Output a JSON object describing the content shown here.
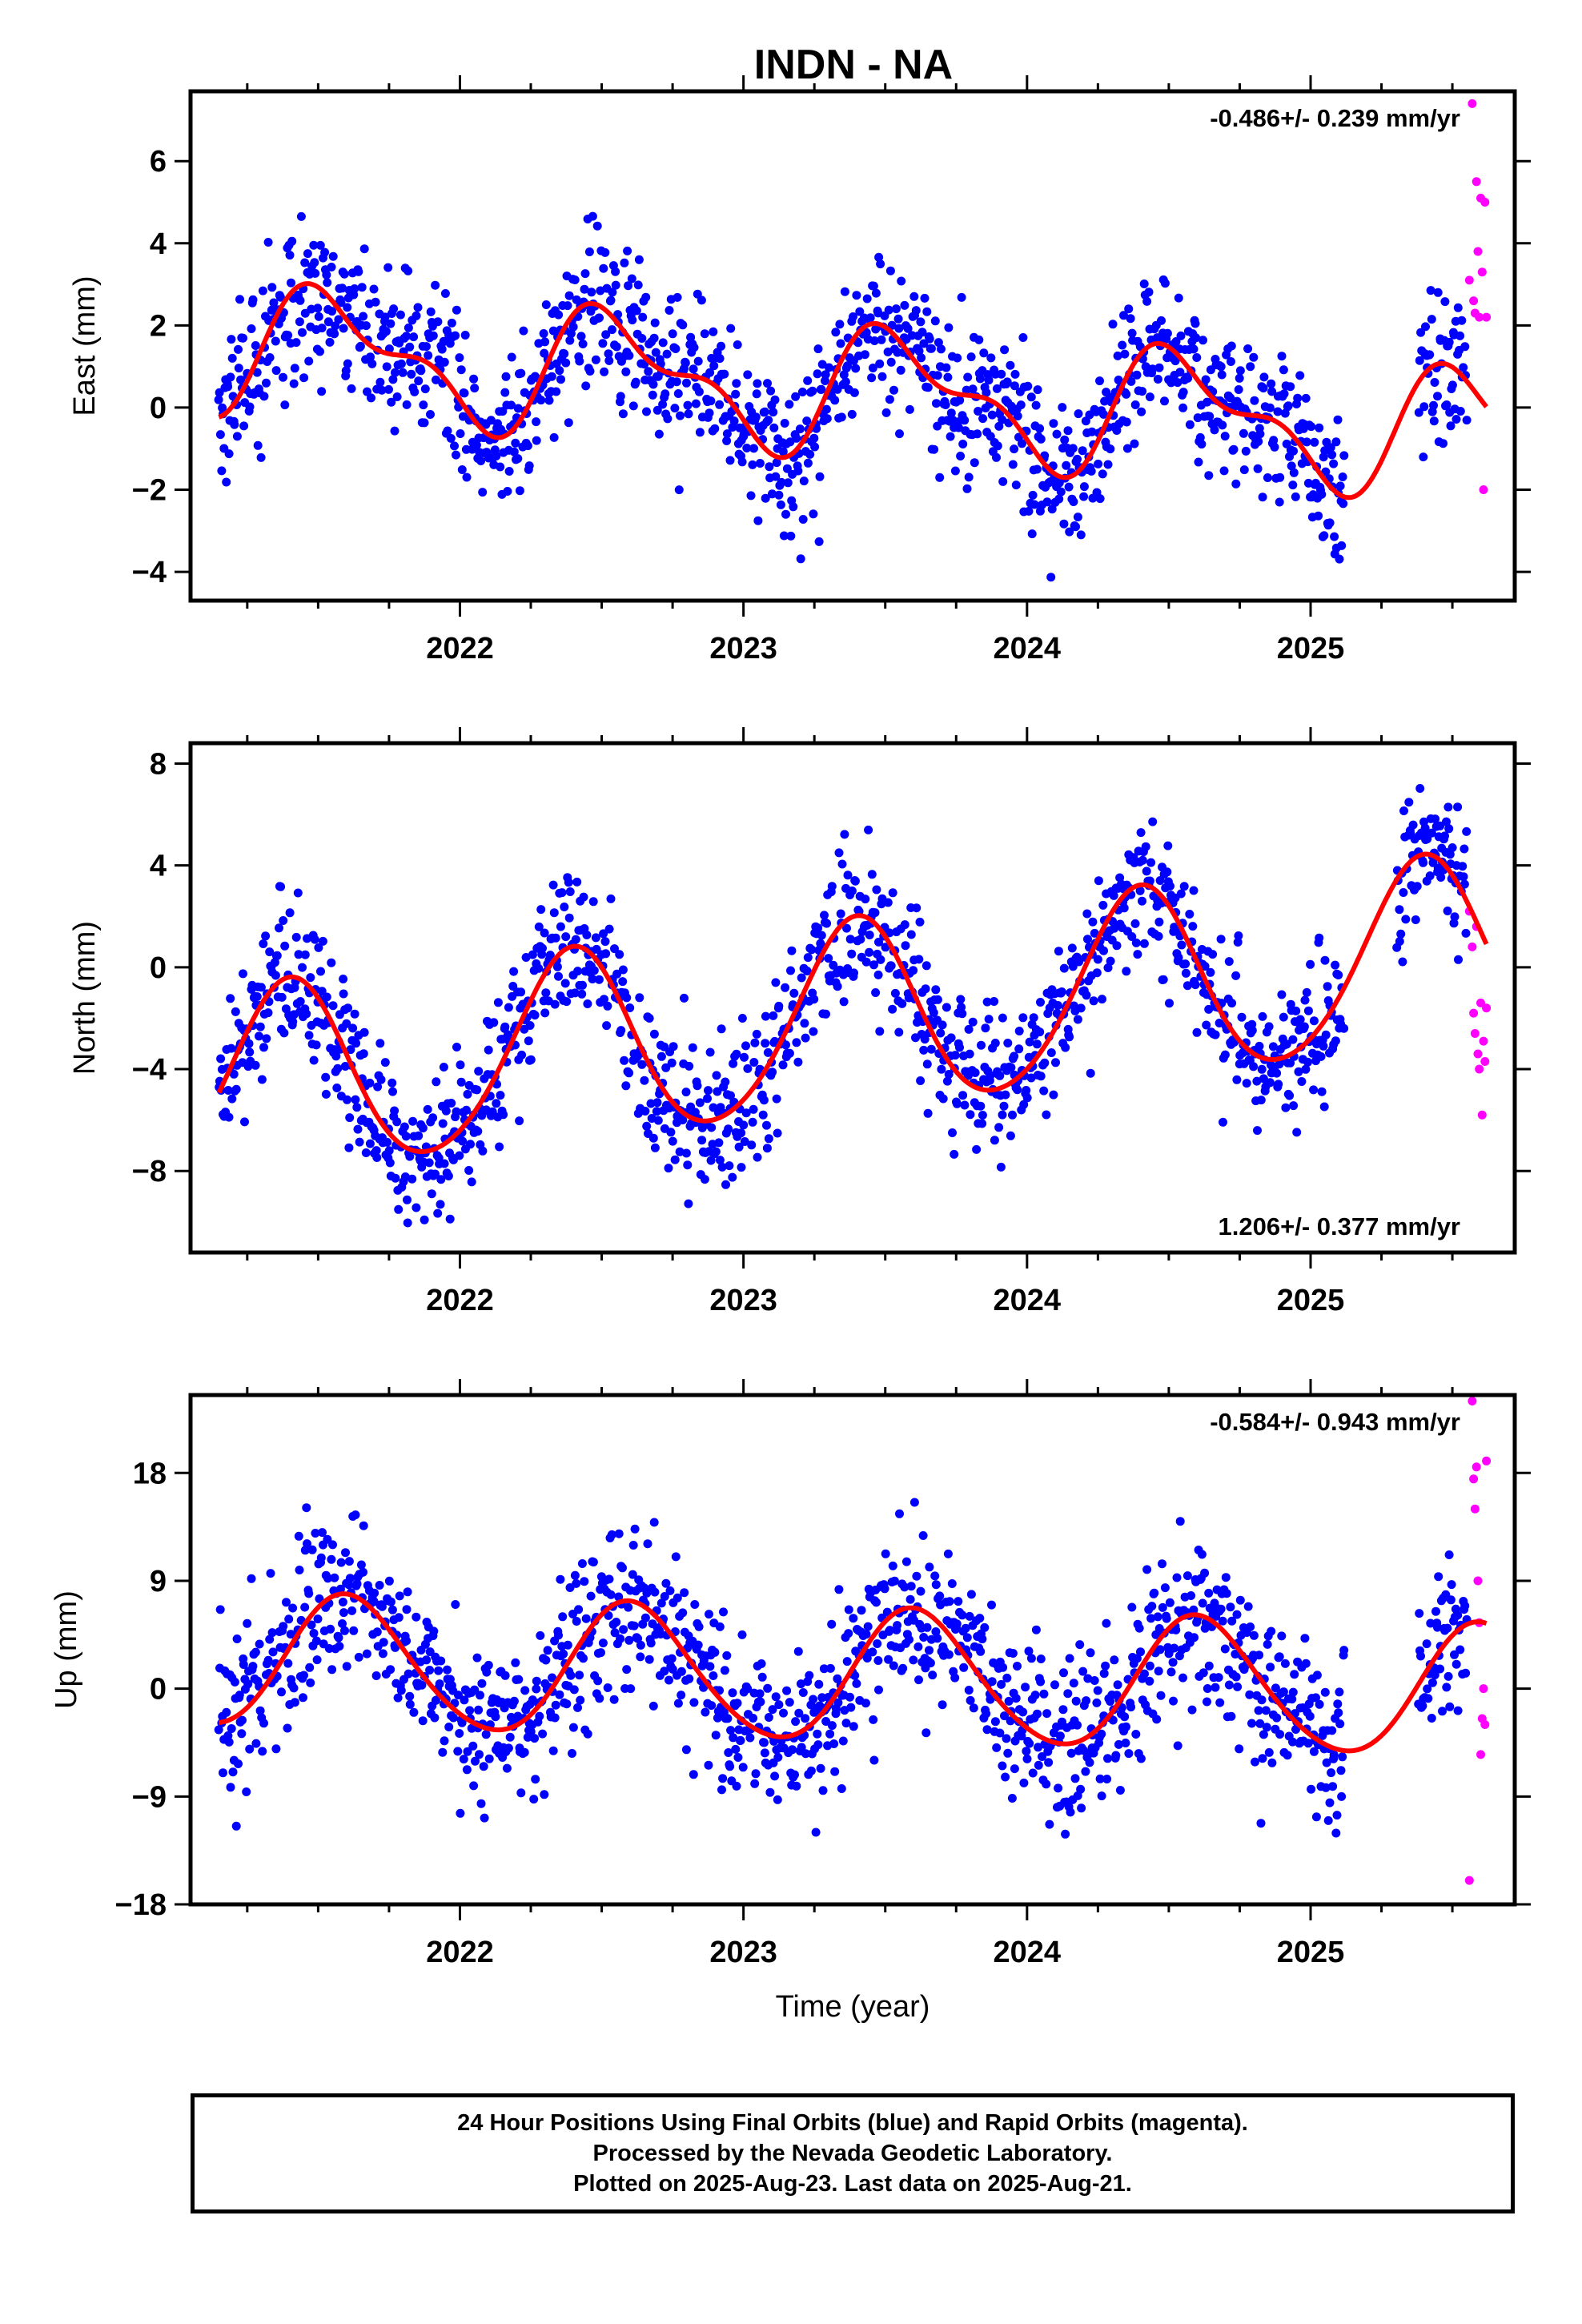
{
  "title": "INDN - NA",
  "colors": {
    "final_orbits": "#0000ff",
    "rapid_orbits": "#ff00ff",
    "model_fit": "#ff0000",
    "frame": "#000000"
  },
  "footer": {
    "line1": "24 Hour Positions Using Final Orbits (blue) and Rapid Orbits (magenta).",
    "line2": "Processed by the Nevada Geodetic Laboratory.",
    "line3": "Plotted on 2025-Aug-23. Last data on 2025-Aug-21."
  },
  "chart_data": [
    {
      "type": "scatter",
      "title": "INDN - NA",
      "ylabel": "East (mm)",
      "xlabel": "",
      "rate_label": "-0.486+/- 0.239 mm/yr",
      "rate_label_position": "top-right",
      "xlim": [
        2021.05,
        2025.72
      ],
      "ylim": [
        -4.7,
        7.7
      ],
      "x_ticks": [
        2022,
        2023,
        2024,
        2025
      ],
      "y_ticks": [
        6,
        4,
        2,
        0,
        -2,
        -4
      ],
      "model": {
        "offset": 0.6,
        "rate": -0.486,
        "annual_cos": -1.25,
        "annual_sin": -0.45,
        "semiannual_cos": 0.35,
        "semiannual_sin": -0.55
      },
      "series": [
        {
          "name": "Final Orbits (blue)",
          "color": "#0000ff",
          "x_start": 2021.15,
          "x_end": 2025.55,
          "n": 1500,
          "scatter": 0.95,
          "gaps": [
            [
              2025.12,
              2025.38
            ]
          ]
        },
        {
          "name": "Rapid Orbits (magenta)",
          "color": "#ff00ff",
          "x": [
            2025.56,
            2025.57,
            2025.575,
            2025.58,
            2025.585,
            2025.59,
            2025.595,
            2025.6,
            2025.605,
            2025.61,
            2025.615,
            2025.62
          ],
          "y": [
            3.1,
            7.4,
            2.6,
            2.3,
            5.5,
            3.8,
            2.2,
            5.1,
            3.3,
            -2.0,
            5.0,
            2.2
          ]
        }
      ]
    },
    {
      "type": "scatter",
      "title": "",
      "ylabel": "North (mm)",
      "xlabel": "",
      "rate_label": "1.206+/- 0.377 mm/yr",
      "rate_label_position": "bottom-right",
      "xlim": [
        2021.05,
        2025.72
      ],
      "ylim": [
        -11.2,
        8.8
      ],
      "x_ticks": [
        2022,
        2023,
        2024,
        2025
      ],
      "y_ticks": [
        8,
        4,
        0,
        -4,
        -8
      ],
      "model": {
        "offset": -2.5,
        "rate": 1.206,
        "annual_cos": -2.9,
        "annual_sin": 2.3,
        "semiannual_cos": 0.2,
        "semiannual_sin": -0.3
      },
      "series": [
        {
          "name": "Final Orbits (blue)",
          "color": "#0000ff",
          "x_start": 2021.15,
          "x_end": 2025.55,
          "n": 1500,
          "scatter": 1.4,
          "gaps": [
            [
              2025.12,
              2025.3
            ]
          ]
        },
        {
          "name": "Rapid Orbits (magenta)",
          "color": "#ff00ff",
          "x": [
            2025.56,
            2025.57,
            2025.575,
            2025.58,
            2025.585,
            2025.59,
            2025.595,
            2025.6,
            2025.605,
            2025.61,
            2025.615,
            2025.62
          ],
          "y": [
            2.2,
            0.8,
            -1.8,
            -2.6,
            1.6,
            -3.4,
            -4.0,
            -1.4,
            -5.8,
            -2.9,
            -3.7,
            -1.6
          ]
        }
      ]
    },
    {
      "type": "scatter",
      "title": "",
      "ylabel": "Up (mm)",
      "xlabel": "Time (year)",
      "rate_label": "-0.584+/- 0.943 mm/yr",
      "rate_label_position": "top-right",
      "xlim": [
        2021.05,
        2025.72
      ],
      "ylim": [
        -18,
        24.5
      ],
      "x_ticks": [
        2022,
        2023,
        2024,
        2025
      ],
      "y_ticks": [
        18,
        9,
        0,
        -9,
        -18
      ],
      "model": {
        "offset": 1.2,
        "rate": -0.584,
        "annual_cos": -4.3,
        "annual_sin": -3.4,
        "semiannual_cos": 0.4,
        "semiannual_sin": 0.3
      },
      "series": [
        {
          "name": "Final Orbits (blue)",
          "color": "#0000ff",
          "x_start": 2021.15,
          "x_end": 2025.55,
          "n": 1500,
          "scatter": 3.6,
          "gaps": [
            [
              2025.12,
              2025.38
            ]
          ]
        },
        {
          "name": "Rapid Orbits (magenta)",
          "color": "#ff00ff",
          "x": [
            2025.56,
            2025.57,
            2025.575,
            2025.58,
            2025.585,
            2025.59,
            2025.595,
            2025.6,
            2025.605,
            2025.61,
            2025.615,
            2025.62
          ],
          "y": [
            -16.0,
            24.0,
            17.5,
            15.0,
            18.5,
            9.0,
            5.5,
            -5.5,
            -2.5,
            0.0,
            -3.0,
            19.0
          ]
        }
      ]
    }
  ]
}
